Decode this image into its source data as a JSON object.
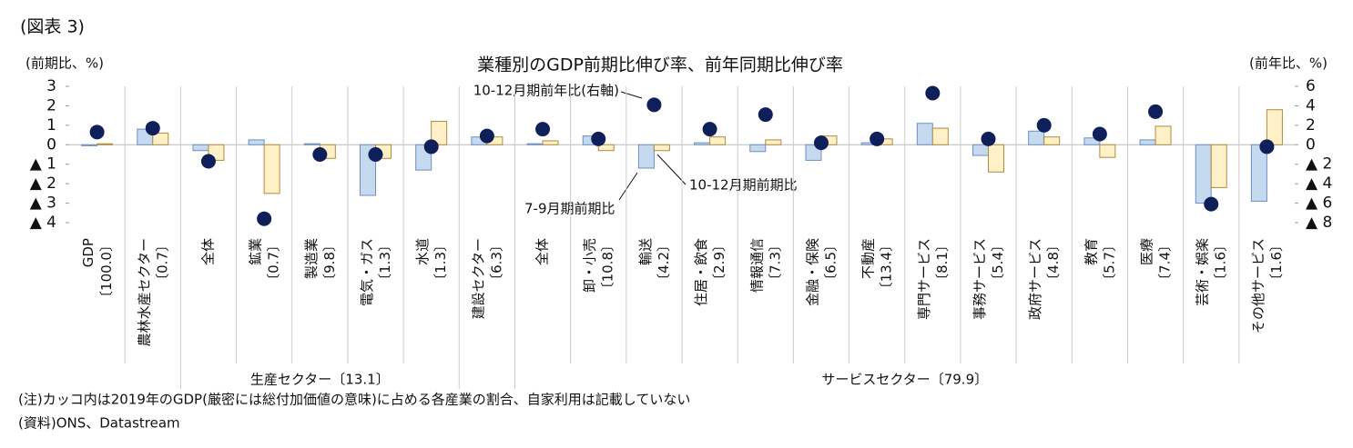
{
  "chart_data": {
    "type": "bar",
    "figure_label": "(図表 3)",
    "title": "業種別のGDP前期比伸び率、前年同期比伸び率",
    "y_label": "(前期比、%)",
    "y2_label": "(前年比、%)",
    "categories": [
      "GDP",
      "農林水産セクター",
      "全体",
      "鉱業",
      "製造業",
      "電気・ガス",
      "水道",
      "建設セクター",
      "全体",
      "卸・小売",
      "輸送",
      "住居・飲食",
      "情報通信",
      "金融・保険",
      "不動産",
      "専門サービス",
      "事務サービス",
      "政府サービス",
      "教育",
      "医療",
      "芸術・娯楽",
      "その他サービス"
    ],
    "weights": [
      "〔100.0〕",
      "〔0.7〕",
      null,
      "〔0.7〕",
      "〔9.8〕",
      "〔1.3〕",
      "〔1.3〕",
      "〔6.3〕",
      null,
      "〔10.8〕",
      "〔4.2〕",
      "〔2.9〕",
      "〔7.3〕",
      "〔6.5〕",
      "〔13.4〕",
      "〔8.1〕",
      "〔5.4〕",
      "〔4.8〕",
      "〔5.7〕",
      "〔7.4〕",
      "〔1.6〕",
      "〔1.6〕"
    ],
    "groups": [
      {
        "label": "生産セクター〔13.1〕",
        "from": 2,
        "to": 6
      },
      {
        "label": "サービスセクター〔79.9〕",
        "from": 8,
        "to": 21
      }
    ],
    "series": [
      {
        "name": "7-9月期前期比",
        "color": "#c5d9ef",
        "values": [
          -0.05,
          0.8,
          -0.3,
          0.25,
          0.05,
          -2.6,
          -1.3,
          0.4,
          0.05,
          0.45,
          -1.2,
          0.1,
          -0.35,
          -0.8,
          0.1,
          1.1,
          -0.55,
          0.7,
          0.35,
          0.25,
          -3.0,
          -2.9
        ]
      },
      {
        "name": "10-12月期前期比",
        "color": "#fff0c8",
        "values": [
          0.05,
          0.6,
          -0.8,
          -2.5,
          -0.7,
          -0.7,
          1.2,
          0.4,
          0.2,
          -0.3,
          -0.3,
          0.4,
          0.25,
          0.45,
          0.3,
          0.85,
          -1.4,
          0.4,
          -0.65,
          0.95,
          -2.2,
          1.8
        ]
      },
      {
        "name": "10-12月期前年比(右軸)",
        "color": "#0f1f5a",
        "axis": "y2",
        "values": [
          1.3,
          1.7,
          -1.7,
          -7.6,
          -1.0,
          -1.0,
          -0.2,
          0.9,
          1.6,
          0.6,
          4.1,
          1.6,
          3.1,
          0.2,
          0.6,
          5.3,
          0.6,
          2.0,
          1.1,
          3.4,
          -6.1,
          -0.2
        ]
      }
    ],
    "ylim": [
      -4,
      3
    ],
    "yticks": [
      3,
      2,
      1,
      0,
      {
        "value": -1,
        "label": "▲ 1"
      },
      {
        "value": -2,
        "label": "▲ 2"
      },
      {
        "value": -3,
        "label": "▲ 3"
      },
      {
        "value": -4,
        "label": "▲ 4"
      }
    ],
    "y2lim": [
      -8,
      6
    ],
    "y2ticks": [
      6,
      4,
      2,
      0,
      {
        "value": -2,
        "label": "▲ 2"
      },
      {
        "value": -4,
        "label": "▲ 4"
      },
      {
        "value": -6,
        "label": "▲ 6"
      },
      {
        "value": -8,
        "label": "▲ 8"
      }
    ],
    "notes": [
      "(注)カッコ内は2019年のGDP(厳密には総付加価値の意味)に占める各産業の割合、自家利用は記載していない",
      "(資料)ONS、Datastream"
    ]
  }
}
